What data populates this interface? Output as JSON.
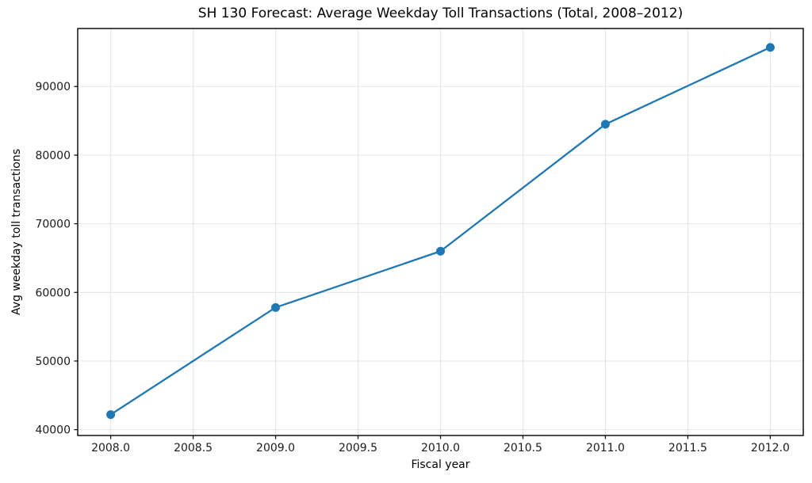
{
  "chart_data": {
    "type": "line",
    "title": "SH 130 Forecast: Average Weekday Toll Transactions (Total, 2008–2012)",
    "xlabel": "Fiscal year",
    "ylabel": "Avg weekday toll transactions",
    "series": [
      {
        "name": "Avg weekday toll transactions",
        "x": [
          2008,
          2009,
          2010,
          2011,
          2012
        ],
        "y": [
          42200,
          57800,
          66000,
          84500,
          95700
        ]
      }
    ],
    "xlim": [
      2007.8,
      2012.2
    ],
    "ylim": [
      39150,
      98450
    ],
    "xtick_values": [
      2008.0,
      2008.5,
      2009.0,
      2009.5,
      2010.0,
      2010.5,
      2011.0,
      2011.5,
      2012.0
    ],
    "xtick_labels": [
      "2008.0",
      "2008.5",
      "2009.0",
      "2009.5",
      "2010.0",
      "2010.5",
      "2011.0",
      "2011.5",
      "2012.0"
    ],
    "ytick_values": [
      40000,
      50000,
      60000,
      70000,
      80000,
      90000
    ],
    "ytick_labels": [
      "40000",
      "50000",
      "60000",
      "70000",
      "80000",
      "90000"
    ],
    "grid": true,
    "legend": "none",
    "marker": "circle",
    "colors": {
      "line": "#1f77b4",
      "grid": "#e6e6e6",
      "spine": "#000000",
      "tick_text": "#1a1a1a"
    }
  }
}
